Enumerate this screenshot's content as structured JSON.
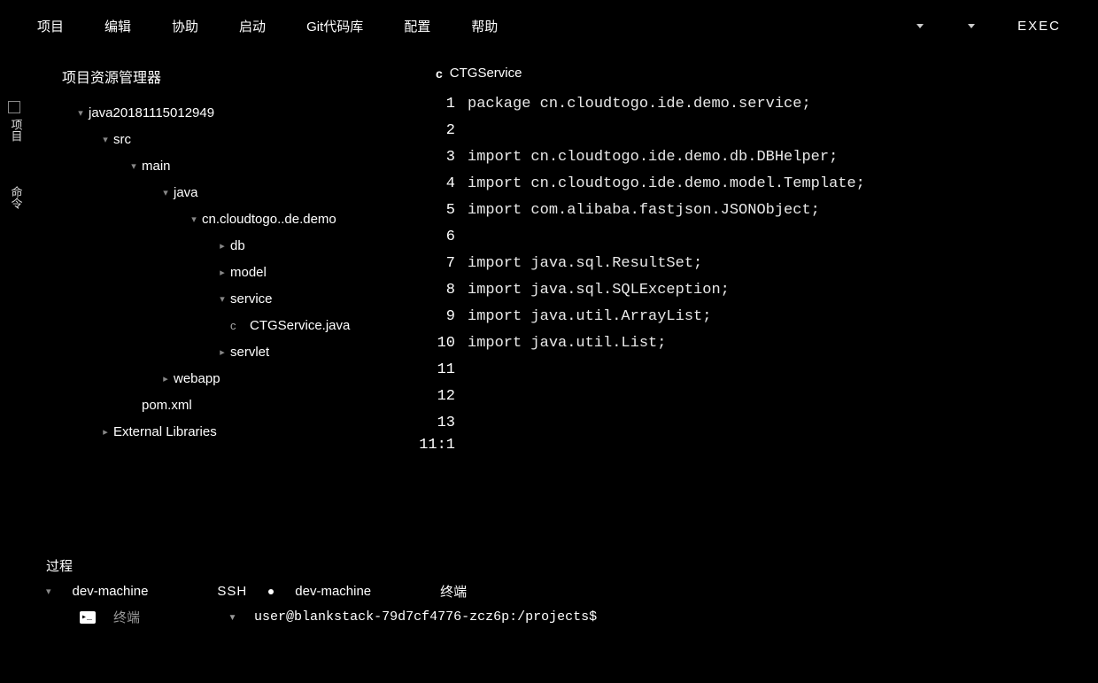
{
  "menubar": {
    "items": [
      "项目",
      "编辑",
      "协助",
      "启动",
      "Git代码库",
      "配置",
      "帮助"
    ],
    "exec": "EXEC"
  },
  "side_tabs": [
    "项目",
    "命令"
  ],
  "explorer": {
    "title": "项目资源管理器",
    "tree": [
      {
        "indent": 0,
        "chev": "▾",
        "icon": "",
        "label": "java20181115012949"
      },
      {
        "indent": 1,
        "chev": "▾",
        "icon": "",
        "label": "src"
      },
      {
        "indent": 2,
        "chev": "▾",
        "icon": "",
        "label": "main"
      },
      {
        "indent": 3,
        "chev": "▾",
        "icon": "",
        "label": "java"
      },
      {
        "indent": 4,
        "chev": "▾",
        "icon": "",
        "label": "cn.cloudtogo..de.demo"
      },
      {
        "indent": 5,
        "chev": "▸",
        "icon": "",
        "label": "db"
      },
      {
        "indent": 5,
        "chev": "▸",
        "icon": "",
        "label": "model"
      },
      {
        "indent": 5,
        "chev": "▾",
        "icon": "",
        "label": "service"
      },
      {
        "indent": 6,
        "chev": "",
        "icon": "c",
        "label": "CTGService.java"
      },
      {
        "indent": 5,
        "chev": "▸",
        "icon": "",
        "label": "servlet"
      },
      {
        "indent": 3,
        "chev": "▸",
        "icon": "",
        "label": "webapp"
      },
      {
        "indent": 2,
        "chev": "",
        "icon": "",
        "label": "pom.xml"
      },
      {
        "indent": 1,
        "chev": "▸",
        "icon": "",
        "label": "External Libraries"
      }
    ]
  },
  "editor": {
    "tab_icon": "c",
    "tab_name": "CTGService",
    "lines": [
      "package cn.cloudtogo.ide.demo.service;",
      "",
      "import cn.cloudtogo.ide.demo.db.DBHelper;",
      "import cn.cloudtogo.ide.demo.model.Template;",
      "import com.alibaba.fastjson.JSONObject;",
      "",
      "import java.sql.ResultSet;",
      "import java.sql.SQLException;",
      "import java.util.ArrayList;",
      "import java.util.List;",
      "",
      "",
      ""
    ],
    "line_count": 13,
    "cursor": "11:1"
  },
  "bottom": {
    "process": "过程",
    "machine": "dev-machine",
    "ssh": "SSH",
    "machine2": "dev-machine",
    "terminal_label": "终端",
    "term_tab": "终端",
    "prompt": "user@blankstack-79d7cf4776-zcz6p:/projects$"
  },
  "colors": {
    "bg": "#000000",
    "fg": "#ffffff",
    "dim": "#888888"
  }
}
